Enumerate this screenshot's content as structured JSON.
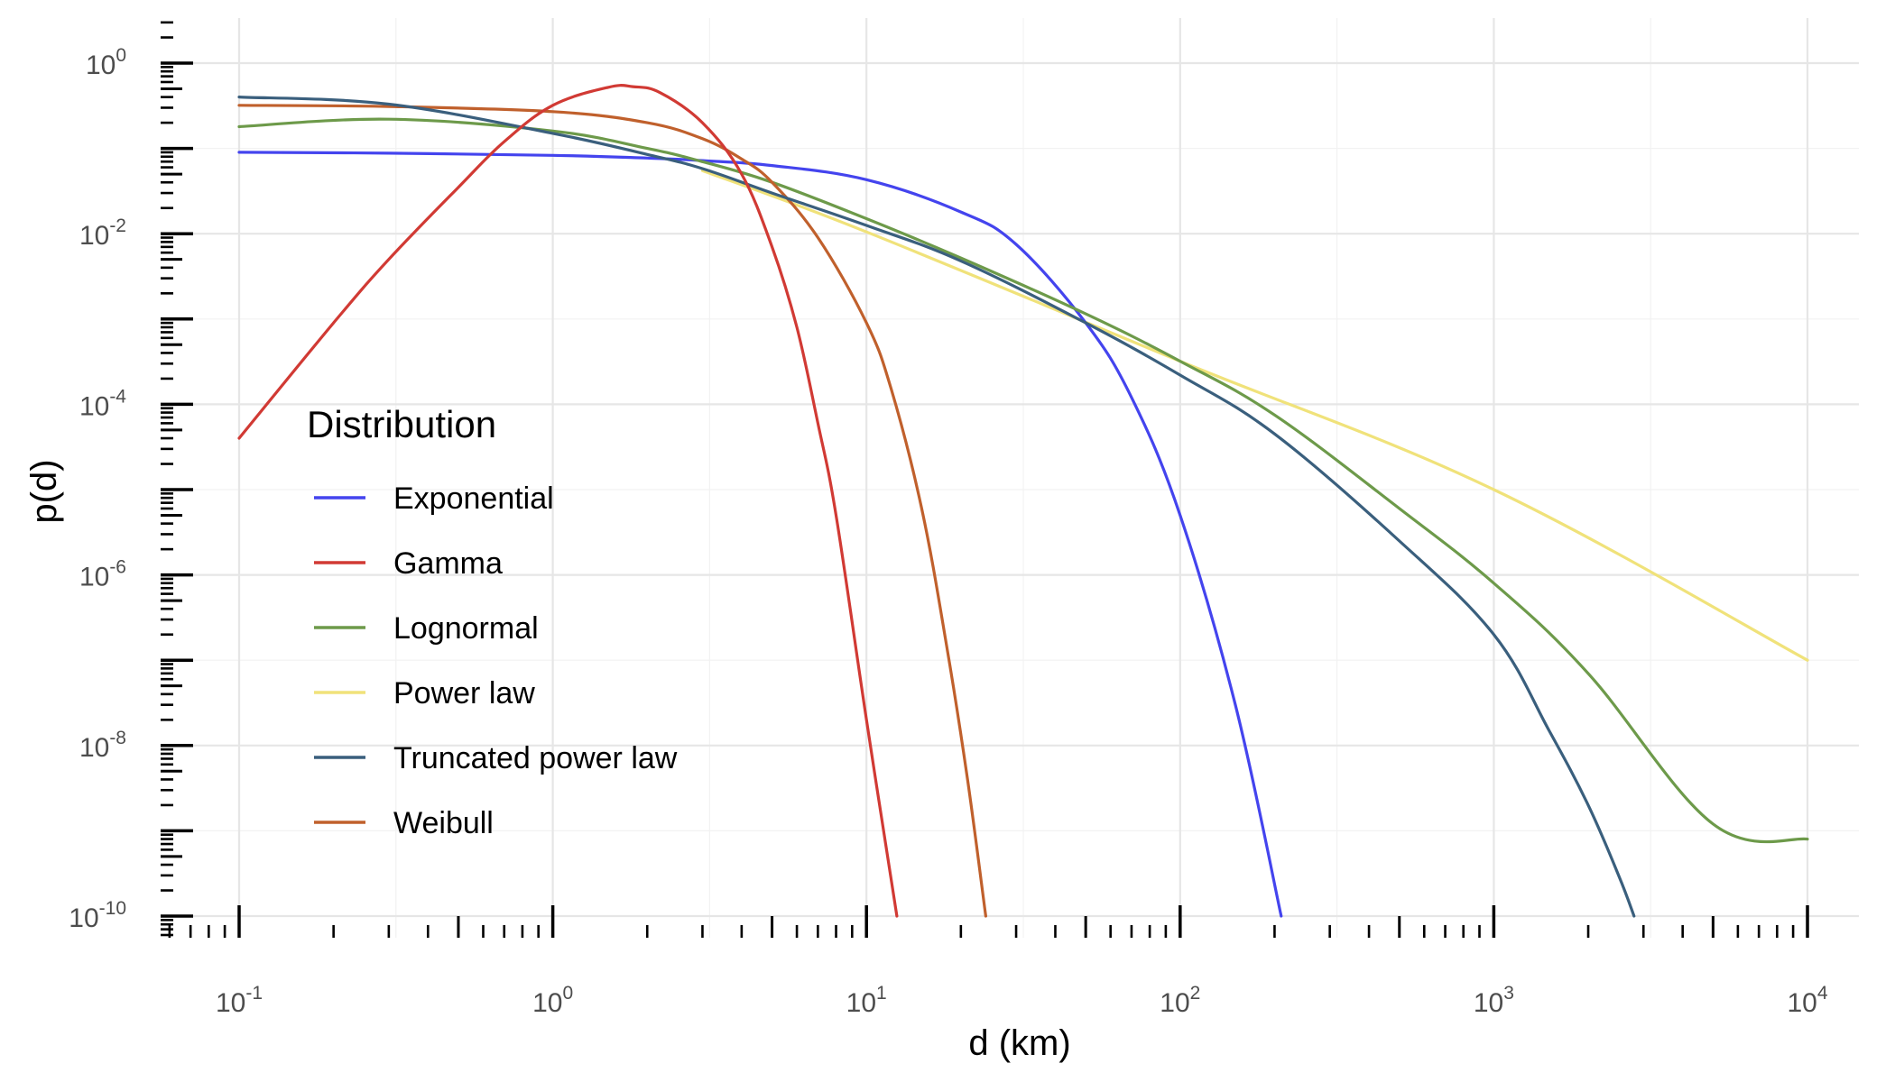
{
  "chart_data": {
    "type": "line",
    "title": "",
    "xlabel": "d (km)",
    "ylabel": "p(d)",
    "x_scale": "log10",
    "y_scale": "log10",
    "xlim": [
      0.063,
      15000
    ],
    "ylim": [
      1e-10,
      3
    ],
    "x_ticks": [
      {
        "value": 0.1,
        "base": "10",
        "exp": "-1"
      },
      {
        "value": 1,
        "base": "10",
        "exp": "0"
      },
      {
        "value": 10,
        "base": "10",
        "exp": "1"
      },
      {
        "value": 100,
        "base": "10",
        "exp": "2"
      },
      {
        "value": 1000,
        "base": "10",
        "exp": "3"
      },
      {
        "value": 10000,
        "base": "10",
        "exp": "4"
      }
    ],
    "y_ticks": [
      {
        "value": 1,
        "base": "10",
        "exp": "0"
      },
      {
        "value": 0.01,
        "base": "10",
        "exp": "-2"
      },
      {
        "value": 0.0001,
        "base": "10",
        "exp": "-4"
      },
      {
        "value": 1e-06,
        "base": "10",
        "exp": "-6"
      },
      {
        "value": 1e-08,
        "base": "10",
        "exp": "-8"
      },
      {
        "value": 1e-10,
        "base": "10",
        "exp": "-10"
      }
    ],
    "grid": true,
    "legend": {
      "title": "Distribution",
      "placement": "left-center inside plot"
    },
    "series": [
      {
        "name": "Exponential",
        "color": "#4444ee",
        "x": [
          0.1,
          0.3,
          1,
          2,
          3,
          5,
          10,
          20,
          30,
          50,
          70,
          100,
          150,
          210
        ],
        "y": [
          0.09,
          0.088,
          0.083,
          0.077,
          0.072,
          0.063,
          0.043,
          0.018,
          0.0075,
          0.0009,
          0.00012,
          5e-06,
          3e-08,
          1e-10
        ]
      },
      {
        "name": "Gamma",
        "color": "#d13a34",
        "x": [
          0.1,
          0.2,
          0.3,
          0.5,
          0.7,
          1,
          1.5,
          1.8,
          2.2,
          3,
          4,
          5,
          6,
          7,
          8,
          10,
          12.5
        ],
        "y": [
          4e-05,
          0.0009,
          0.005,
          0.035,
          0.12,
          0.32,
          0.52,
          0.53,
          0.45,
          0.2,
          0.05,
          0.007,
          0.0008,
          6e-05,
          5e-06,
          2e-08,
          1e-10
        ]
      },
      {
        "name": "Lognormal",
        "color": "#6d9a4a",
        "x": [
          0.1,
          0.3,
          1,
          2,
          3,
          5,
          10,
          20,
          50,
          100,
          200,
          500,
          1000,
          2000,
          5000,
          10000
        ],
        "y": [
          0.18,
          0.22,
          0.16,
          0.1,
          0.07,
          0.04,
          0.015,
          0.0052,
          0.00115,
          0.00032,
          7.5e-05,
          6e-06,
          8e-07,
          7e-08,
          1.2e-09,
          8e-10
        ]
      },
      {
        "name": "Power law",
        "color": "#f0e27a",
        "x": [
          3,
          10,
          100,
          1000,
          10000
        ],
        "y": [
          0.055,
          0.0105,
          0.00032,
          1e-05,
          1e-07
        ]
      },
      {
        "name": "Truncated power law",
        "color": "#3a5f7d",
        "x": [
          0.1,
          0.3,
          1,
          2,
          3,
          5,
          10,
          20,
          50,
          100,
          200,
          500,
          1000,
          1500,
          2000,
          2500,
          2800
        ],
        "y": [
          0.4,
          0.33,
          0.15,
          0.085,
          0.058,
          0.03,
          0.0125,
          0.0048,
          0.0009,
          0.00022,
          4.5e-05,
          2.5e-06,
          2e-07,
          1.5e-08,
          2e-09,
          3e-10,
          1e-10
        ]
      },
      {
        "name": "Weibull",
        "color": "#c0602c",
        "x": [
          0.1,
          0.3,
          1,
          2,
          3,
          4,
          5,
          7,
          10,
          12,
          15,
          18,
          21,
          24
        ],
        "y": [
          0.32,
          0.31,
          0.27,
          0.2,
          0.13,
          0.075,
          0.04,
          0.009,
          0.0009,
          0.00015,
          6e-06,
          1.5e-07,
          4e-09,
          1e-10
        ]
      }
    ]
  }
}
